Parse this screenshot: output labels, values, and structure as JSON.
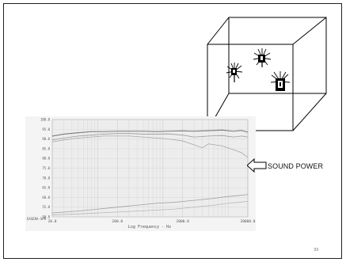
{
  "slide": {
    "callout_label": "SOUND POWER",
    "page_number": "33"
  },
  "chart_data": {
    "type": "line",
    "xscale": "log",
    "xlabel": "Log Frequency - Hz",
    "ylabel": "",
    "x_ticks": [
      "20.0",
      "200.0",
      "2000.0",
      "20000.0"
    ],
    "xlim": [
      20,
      20000
    ],
    "y_ticks": [
      "100.0",
      "95.0",
      "90.0",
      "85.0",
      "80.0",
      "75.0",
      "70.0",
      "65.0",
      "60.0",
      "55.0",
      "50.0"
    ],
    "ylim": [
      50,
      100
    ],
    "y_bottom_label": "EASERA-SPR",
    "grid": true,
    "series": [
      {
        "color": "#7a7a7a",
        "x": [
          20,
          30,
          50,
          80,
          120,
          200,
          300,
          500,
          800,
          1200,
          2000,
          3000,
          5000,
          8000,
          12000,
          16000,
          20000
        ],
        "values": [
          91.5,
          92.5,
          93.2,
          93.8,
          93.8,
          94.0,
          94.0,
          94.0,
          93.8,
          94.0,
          94.2,
          94.0,
          94.3,
          94.6,
          94.0,
          94.4,
          93.5
        ]
      },
      {
        "color": "#9a9a9a",
        "x": [
          20,
          30,
          50,
          80,
          120,
          200,
          300,
          500,
          800,
          1200,
          2000,
          3000,
          5000,
          8000,
          12000,
          16000,
          20000
        ],
        "values": [
          89.5,
          90.5,
          91.5,
          92.0,
          92.5,
          92.8,
          92.8,
          92.5,
          92.5,
          92.6,
          92.0,
          91.0,
          91.5,
          91.8,
          91.0,
          91.5,
          91.0
        ]
      },
      {
        "color": "#a8a8a8",
        "x": [
          20,
          30,
          50,
          80,
          120,
          200,
          300,
          500,
          800,
          1200,
          2000,
          3000,
          4000,
          5000,
          8000,
          12000,
          16000,
          20000
        ],
        "values": [
          88.5,
          89.5,
          90.5,
          91.0,
          91.5,
          91.5,
          91.5,
          91.0,
          90.5,
          90.0,
          89.0,
          87.0,
          85.5,
          87.5,
          86.5,
          84.5,
          83.0,
          80.5
        ]
      },
      {
        "color": "#a0a0a0",
        "x": [
          20,
          50,
          100,
          200,
          400,
          800,
          1500,
          3000,
          6000,
          10000,
          15000,
          20000
        ],
        "values": [
          52.0,
          53.0,
          54.0,
          55.0,
          56.0,
          57.0,
          57.5,
          58.5,
          59.5,
          60.5,
          61.0,
          61.5
        ]
      },
      {
        "color": "#b8b8b8",
        "x": [
          20,
          50,
          100,
          200,
          400,
          800,
          1500,
          3000,
          6000,
          10000,
          15000,
          20000
        ],
        "values": [
          51.0,
          51.5,
          52.0,
          52.5,
          53.0,
          53.5,
          54.0,
          55.0,
          56.0,
          57.0,
          57.5,
          58.0
        ]
      }
    ]
  }
}
